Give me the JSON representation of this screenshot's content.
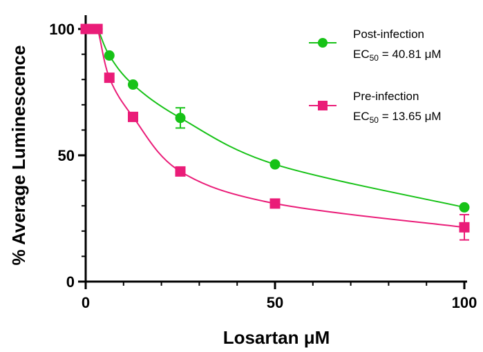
{
  "chart_data": {
    "type": "scatter",
    "xlabel": "Losartan μM",
    "ylabel": "% Average Luminescence",
    "xlim": [
      0,
      100
    ],
    "ylim": [
      0,
      100
    ],
    "x_ticks": [
      0,
      50,
      100
    ],
    "y_ticks": [
      0,
      50,
      100
    ],
    "grid": false,
    "legend_position": "top-right",
    "series": [
      {
        "name": "Post-infection",
        "ec50_prefix": "EC",
        "ec50_sub": "50",
        "ec50_value": " = 40.81 μM",
        "color": "#17c217",
        "marker": "circle",
        "x": [
          0,
          0.78,
          1.56,
          3.13,
          6.25,
          12.5,
          25,
          50,
          100
        ],
        "y": [
          100,
          100,
          100,
          100,
          89.5,
          78,
          64.8,
          46.4,
          29.4
        ],
        "error": [
          0,
          0,
          0,
          0,
          0,
          0,
          4,
          0,
          0
        ]
      },
      {
        "name": "Pre-infection",
        "ec50_prefix": "EC",
        "ec50_sub": "50",
        "ec50_value": " = 13.65 μM",
        "color": "#ea1c78",
        "marker": "square",
        "x": [
          0,
          0.78,
          1.56,
          3.13,
          6.25,
          12.5,
          25,
          50,
          100
        ],
        "y": [
          100,
          100,
          100,
          100,
          80.7,
          65.2,
          43.6,
          30.9,
          21.5
        ],
        "error": [
          0,
          0,
          0,
          0,
          0,
          0,
          0,
          0,
          5
        ]
      }
    ]
  }
}
